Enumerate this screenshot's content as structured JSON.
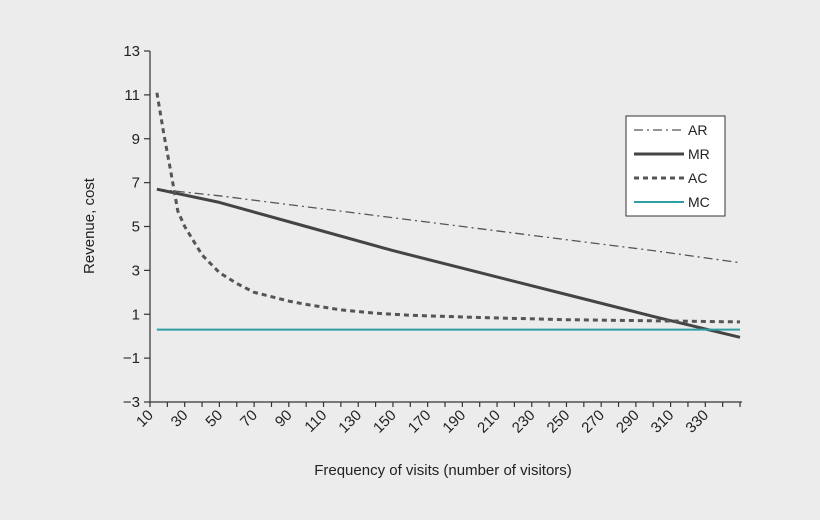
{
  "chart_data": {
    "type": "line",
    "title": "",
    "xlabel": "Frequency of visits (number of visitors)",
    "ylabel": "Revenue, cost",
    "xlim": [
      10,
      350
    ],
    "ylim": [
      -3,
      13
    ],
    "y_ticks": [
      13,
      11,
      9,
      7,
      5,
      3,
      1,
      -1,
      -3
    ],
    "y_tick_labels": [
      "13",
      "11",
      "9",
      "7",
      "5",
      "3",
      "1",
      "−1",
      "−3"
    ],
    "x_ticks": [
      10,
      30,
      50,
      70,
      90,
      110,
      130,
      150,
      170,
      190,
      210,
      230,
      250,
      270,
      290,
      310,
      330
    ],
    "x_tick_labels": [
      "10",
      "30",
      "50",
      "70",
      "90",
      "110",
      "130",
      "150",
      "170",
      "190",
      "210",
      "230",
      "250",
      "270",
      "290",
      "310",
      "330"
    ],
    "grid": false,
    "legend_position": "top-right",
    "series": [
      {
        "name": "AR",
        "style": "dash-dot",
        "color": "#555555",
        "x": [
          14,
          50,
          100,
          150,
          200,
          250,
          300,
          350
        ],
        "y": [
          6.7,
          6.4,
          5.9,
          5.4,
          4.9,
          4.4,
          3.9,
          3.35
        ]
      },
      {
        "name": "MR",
        "style": "solid-thick",
        "color": "#444444",
        "x": [
          14,
          50,
          100,
          150,
          200,
          250,
          300,
          350
        ],
        "y": [
          6.7,
          6.1,
          5.0,
          3.9,
          2.9,
          1.9,
          0.9,
          -0.05
        ]
      },
      {
        "name": "AC",
        "style": "dashed",
        "color": "#555555",
        "x": [
          14,
          18,
          22,
          26,
          30,
          40,
          50,
          60,
          70,
          80,
          90,
          100,
          120,
          140,
          160,
          200,
          250,
          300,
          350
        ],
        "y": [
          11.1,
          9.2,
          7.5,
          5.7,
          5.0,
          3.7,
          2.9,
          2.4,
          2.0,
          1.8,
          1.6,
          1.45,
          1.2,
          1.05,
          0.95,
          0.85,
          0.75,
          0.7,
          0.65
        ]
      },
      {
        "name": "MC",
        "style": "solid",
        "color": "#2e9ea4",
        "x": [
          14,
          350
        ],
        "y": [
          0.3,
          0.3
        ]
      }
    ]
  }
}
